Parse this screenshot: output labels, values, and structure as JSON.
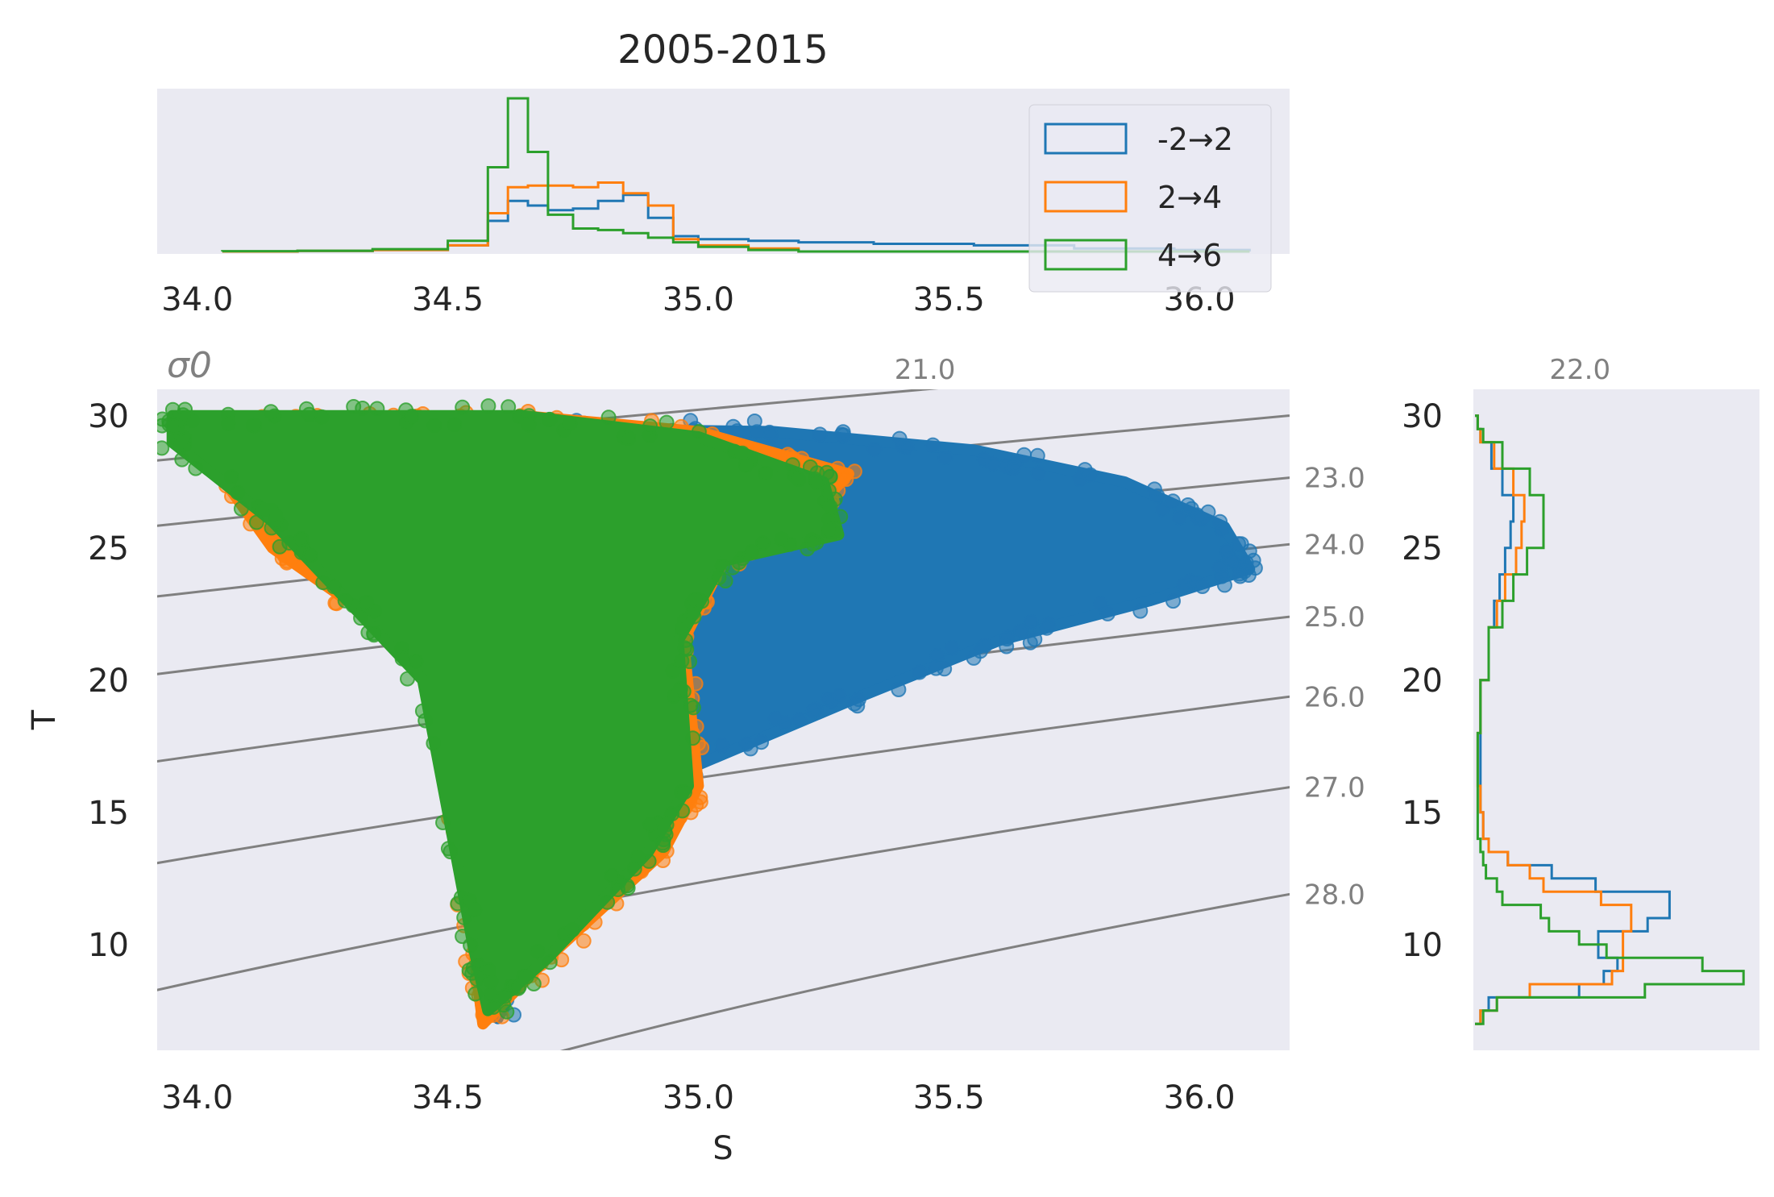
{
  "colors": {
    "panel_bg": "#eaeaf2",
    "contour": "#808080",
    "blue": "#1f77b4",
    "orange": "#ff7f0e",
    "green": "#2ca02c"
  },
  "chart_data": {
    "type": "scatter",
    "title": "2005-2015",
    "xlabel": "S",
    "ylabel": "T",
    "xlim": [
      33.92,
      36.18
    ],
    "ylim": [
      6.0,
      31.0
    ],
    "xticks": [
      "34.0",
      "34.5",
      "35.0",
      "35.5",
      "36.0"
    ],
    "yticks": [
      "10",
      "15",
      "20",
      "25",
      "30"
    ],
    "grid": false,
    "legend_position": "top-right (salinity histogram panel)",
    "legend": [
      "-2→2",
      "2→4",
      "4→6"
    ],
    "sigma_label": "σ0",
    "sigma_contours": [
      21.0,
      22.0,
      23.0,
      24.0,
      25.0,
      26.0,
      27.0,
      28.0
    ],
    "sigma_top_labels": [
      "21.0",
      "22.0"
    ],
    "sigma_right_labels": [
      "23.0",
      "24.0",
      "25.0",
      "26.0",
      "27.0",
      "28.0"
    ],
    "series": [
      {
        "name": "-2→2",
        "color": "#1f77b4",
        "envelope_S": [
          34.55,
          34.3,
          34.7,
          35.15,
          35.55,
          35.85,
          36.05,
          36.1,
          35.9,
          35.6,
          35.3,
          35.0,
          34.75,
          34.6
        ],
        "envelope_T": [
          30.0,
          29.5,
          29.5,
          29.4,
          28.7,
          27.5,
          25.8,
          24.2,
          23.0,
          21.5,
          19.2,
          16.8,
          13.3,
          7.2
        ]
      },
      {
        "name": "2→4",
        "color": "#ff7f0e",
        "envelope_S": [
          33.98,
          34.3,
          34.65,
          35.0,
          35.3,
          35.25,
          35.05,
          34.97,
          35.0,
          34.93,
          34.7,
          34.57,
          34.55,
          34.45,
          34.3,
          34.15
        ],
        "envelope_T": [
          29.5,
          29.8,
          30.0,
          29.4,
          27.8,
          26.8,
          24.5,
          21.5,
          16.0,
          13.5,
          9.5,
          7.0,
          10.0,
          21.5,
          23.0,
          25.0
        ]
      },
      {
        "name": "4→6",
        "color": "#2ca02c",
        "envelope_S": [
          33.95,
          34.3,
          34.65,
          35.0,
          35.25,
          35.28,
          35.05,
          34.96,
          34.98,
          34.9,
          34.7,
          34.58,
          34.55,
          34.45,
          34.3,
          34.15,
          33.95
        ],
        "envelope_T": [
          30.0,
          30.0,
          30.0,
          29.2,
          27.5,
          25.5,
          24.5,
          21.5,
          16.0,
          13.5,
          9.5,
          7.5,
          10.0,
          20.0,
          23.0,
          26.0,
          29.0
        ]
      }
    ],
    "histogram_S": {
      "bin_edges": [
        34.05,
        34.2,
        34.35,
        34.5,
        34.58,
        34.62,
        34.66,
        34.7,
        34.75,
        34.8,
        34.85,
        34.9,
        34.95,
        35.0,
        35.1,
        35.2,
        35.35,
        35.55,
        35.75,
        35.95,
        36.1
      ],
      "-2→2": [
        0,
        0.004,
        0.01,
        0.04,
        0.2,
        0.33,
        0.3,
        0.27,
        0.28,
        0.33,
        0.37,
        0.22,
        0.1,
        0.08,
        0.07,
        0.06,
        0.05,
        0.04,
        0.02,
        0.01
      ],
      "2→4": [
        0,
        0.004,
        0.01,
        0.04,
        0.25,
        0.42,
        0.43,
        0.43,
        0.42,
        0.45,
        0.38,
        0.3,
        0.08,
        0.04,
        0.02,
        0,
        0,
        0,
        0,
        0
      ],
      "4→6": [
        0.002,
        0.005,
        0.015,
        0.07,
        0.55,
        1.0,
        0.65,
        0.24,
        0.15,
        0.14,
        0.12,
        0.09,
        0.06,
        0.03,
        0.01,
        0,
        0,
        0,
        0,
        0
      ]
    },
    "histogram_T": {
      "bin_edges": [
        7.0,
        7.5,
        8.0,
        8.5,
        9.0,
        9.5,
        10.0,
        10.5,
        11.0,
        11.5,
        12.0,
        12.5,
        13.0,
        13.5,
        14.0,
        15.0,
        16.0,
        18.0,
        20.0,
        22.0,
        23.0,
        24.0,
        25.0,
        26.0,
        27.0,
        28.0,
        29.0,
        29.5,
        30.0
      ],
      "-2→2": [
        0.02,
        0.05,
        0.38,
        0.47,
        0.52,
        0.45,
        0.45,
        0.63,
        0.71,
        0.71,
        0.44,
        0.28,
        0.12,
        0.05,
        0.03,
        0.02,
        0.02,
        0.02,
        0.05,
        0.07,
        0.09,
        0.11,
        0.13,
        0.14,
        0.1,
        0.06,
        0.02,
        0.01
      ],
      "2→4": [
        0.02,
        0.08,
        0.2,
        0.5,
        0.54,
        0.54,
        0.54,
        0.57,
        0.57,
        0.46,
        0.25,
        0.2,
        0.12,
        0.05,
        0.03,
        0.02,
        0.01,
        0.02,
        0.05,
        0.08,
        0.11,
        0.15,
        0.17,
        0.18,
        0.14,
        0.07,
        0.02,
        0.01
      ],
      "4→6": [
        0.03,
        0.08,
        0.62,
        0.98,
        0.83,
        0.48,
        0.38,
        0.27,
        0.24,
        0.1,
        0.08,
        0.04,
        0.03,
        0.02,
        0.01,
        0.01,
        0.01,
        0.02,
        0.05,
        0.1,
        0.14,
        0.19,
        0.25,
        0.25,
        0.2,
        0.1,
        0.03,
        0.01
      ]
    }
  }
}
